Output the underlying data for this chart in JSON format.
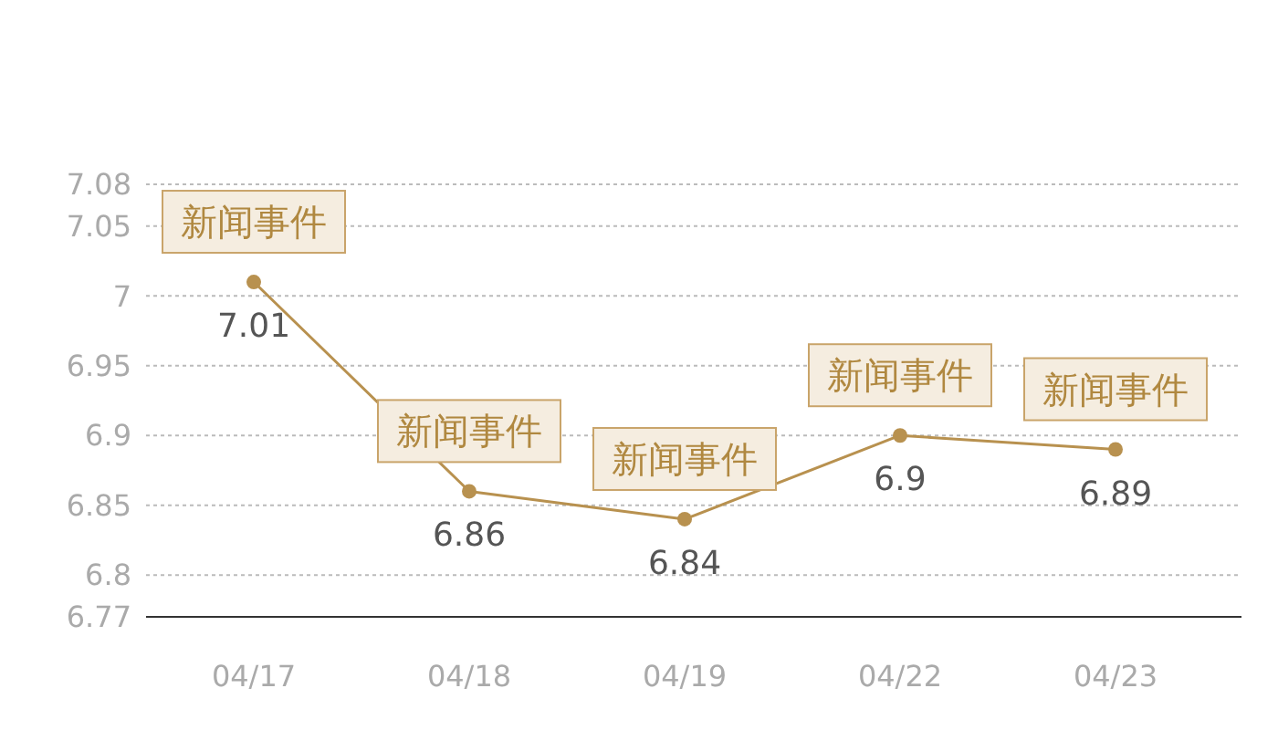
{
  "chart_data": {
    "type": "line",
    "categories": [
      "04/17",
      "04/18",
      "04/19",
      "04/22",
      "04/23"
    ],
    "series": [
      {
        "color": "#b8914f",
        "values": [
          7.01,
          6.86,
          6.84,
          6.9,
          6.89
        ]
      }
    ],
    "ylim": [
      6.77,
      7.08
    ],
    "yticks": [
      6.77,
      6.8,
      6.85,
      6.9,
      6.95,
      7,
      7.05,
      7.08
    ],
    "grid": "y",
    "marker": "circle",
    "line_style": "solid",
    "data_labels": true,
    "annotations": [
      {
        "text": "新闻事件",
        "x": "04/17",
        "y": 7.01
      },
      {
        "text": "新闻事件",
        "x": "04/18",
        "y": 6.86
      },
      {
        "text": "新闻事件",
        "x": "04/19",
        "y": 6.84
      },
      {
        "text": "新闻事件",
        "x": "04/22",
        "y": 6.9
      },
      {
        "text": "新闻事件",
        "x": "04/23",
        "y": 6.89
      }
    ]
  }
}
